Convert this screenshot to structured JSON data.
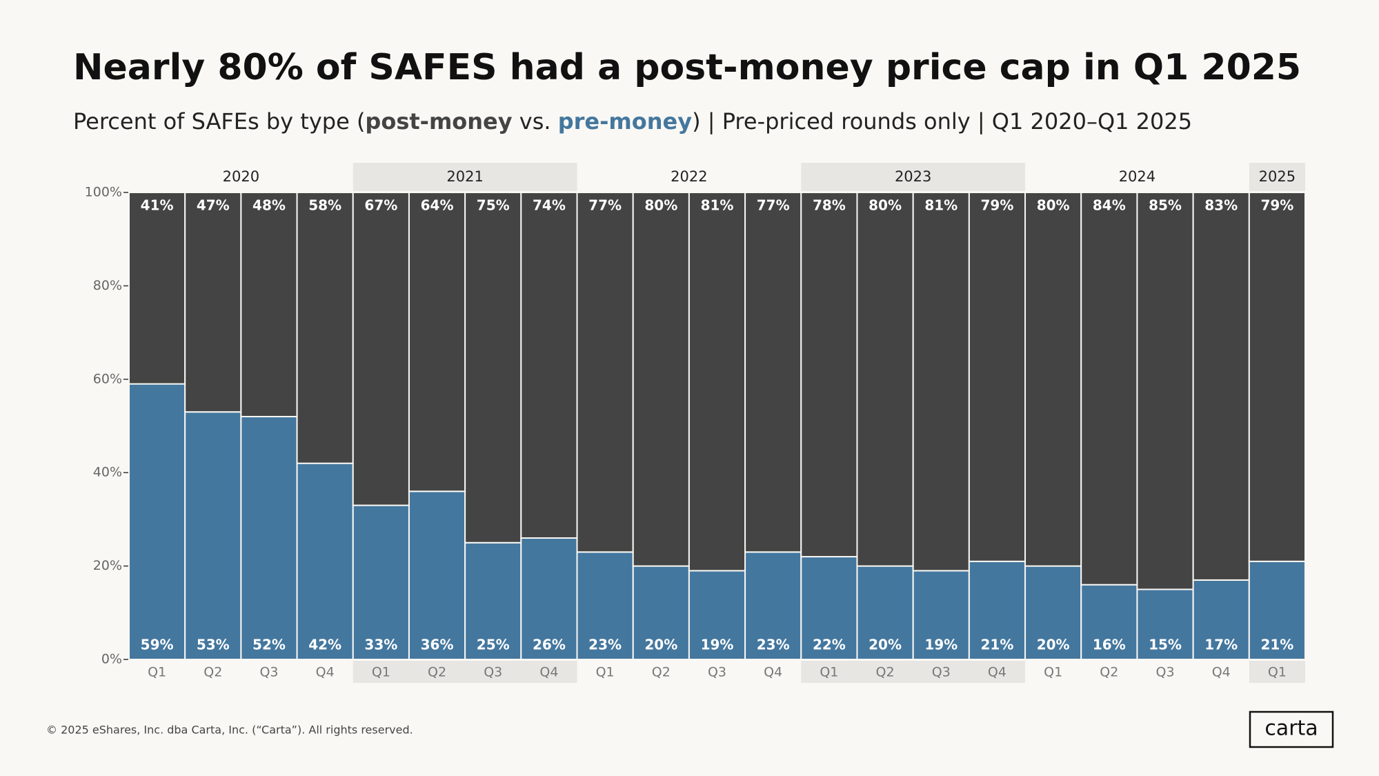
{
  "chart_data": {
    "type": "stacked-bar",
    "title": "Nearly 80% of SAFES had a post-money price cap in Q1 2025",
    "subtitle": [
      "Percent of SAFEs by type (",
      " vs. ",
      ") | Pre-priced rounds only | Q1 2020–Q1 2025"
    ],
    "groups": [
      {
        "label": "2020",
        "categories": [
          "Q1",
          "Q2",
          "Q3",
          "Q4"
        ]
      },
      {
        "label": "2021",
        "categories": [
          "Q1",
          "Q2",
          "Q3",
          "Q4"
        ]
      },
      {
        "label": "2022",
        "categories": [
          "Q1",
          "Q2",
          "Q3",
          "Q4"
        ]
      },
      {
        "label": "2023",
        "categories": [
          "Q1",
          "Q2",
          "Q3",
          "Q4"
        ]
      },
      {
        "label": "2024",
        "categories": [
          "Q1",
          "Q2",
          "Q3",
          "Q4"
        ]
      },
      {
        "label": "2025",
        "categories": [
          "Q1"
        ]
      }
    ],
    "series": [
      {
        "name": "pre-money",
        "color": "#44779e",
        "values": [
          59,
          53,
          52,
          42,
          33,
          36,
          25,
          26,
          23,
          20,
          19,
          23,
          22,
          20,
          19,
          21,
          20,
          16,
          15,
          17,
          21
        ],
        "value_labels": [
          "59%",
          "53%",
          "52%",
          "42%",
          "33%",
          "36%",
          "25%",
          "26%",
          "23%",
          "20%",
          "19%",
          "23%",
          "22%",
          "20%",
          "19%",
          "21%",
          "20%",
          "16%",
          "15%",
          "17%",
          "21%"
        ]
      },
      {
        "name": "post-money",
        "color": "#444444",
        "values": [
          41,
          47,
          48,
          58,
          67,
          64,
          75,
          74,
          77,
          80,
          81,
          77,
          78,
          80,
          81,
          79,
          80,
          84,
          85,
          83,
          79
        ],
        "value_labels": [
          "41%",
          "47%",
          "48%",
          "58%",
          "67%",
          "64%",
          "75%",
          "74%",
          "77%",
          "80%",
          "81%",
          "77%",
          "78%",
          "80%",
          "81%",
          "79%",
          "80%",
          "84%",
          "85%",
          "83%",
          "79%"
        ]
      }
    ],
    "ylim": [
      0,
      100
    ],
    "yticks": [
      {
        "value": 0,
        "label": "0%"
      },
      {
        "value": 20,
        "label": "20%"
      },
      {
        "value": 40,
        "label": "40%"
      },
      {
        "value": 60,
        "label": "60%"
      },
      {
        "value": 80,
        "label": "80%"
      },
      {
        "value": 100,
        "label": "100%"
      }
    ],
    "footer": "© 2025 eShares, Inc. dba Carta, Inc. (“Carta”). All rights reserved.",
    "logo": "carta"
  }
}
